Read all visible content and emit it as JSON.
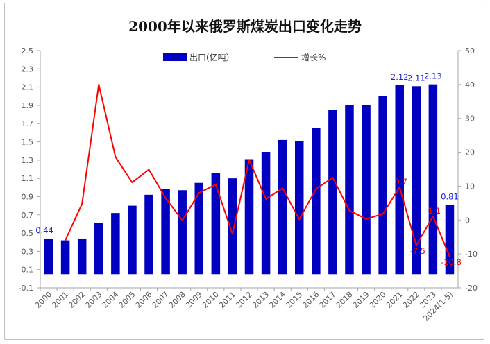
{
  "chart_data": {
    "type": "bar+line",
    "title": "2000年以来俄罗斯煤炭出口变化走势",
    "categories": [
      "2000",
      "2001",
      "2002",
      "2003",
      "2004",
      "2005",
      "2006",
      "2007",
      "2008",
      "2009",
      "2010",
      "2011",
      "2012",
      "2013",
      "2014",
      "2015",
      "2016",
      "2017",
      "2018",
      "2019",
      "2020",
      "2021",
      "2022",
      "2023",
      "2024(1-5)"
    ],
    "series": [
      {
        "name": "出口(亿吨）",
        "type": "bar",
        "axis": "left",
        "color": "#0000c0",
        "values": [
          0.44,
          0.42,
          0.44,
          0.61,
          0.72,
          0.8,
          0.92,
          0.98,
          0.97,
          1.05,
          1.16,
          1.1,
          1.31,
          1.39,
          1.52,
          1.51,
          1.65,
          1.85,
          1.9,
          1.9,
          2.0,
          2.12,
          2.11,
          2.13,
          0.81
        ]
      },
      {
        "name": "增长%",
        "type": "line",
        "axis": "right",
        "color": "#ff0000",
        "values": [
          null,
          -6.0,
          4.8,
          40.0,
          18.6,
          11.1,
          14.9,
          6.5,
          -0.1,
          8.0,
          10.5,
          -4.1,
          17.8,
          6.2,
          9.4,
          0.2,
          9.2,
          12.5,
          2.8,
          0.3,
          1.8,
          9.7,
          -7.5,
          1.1,
          -10.8
        ]
      }
    ],
    "bar_data_labels": [
      {
        "index": 0,
        "text": "0.44"
      },
      {
        "index": 21,
        "text": "2.12"
      },
      {
        "index": 22,
        "text": "2.11"
      },
      {
        "index": 23,
        "text": "2.13"
      },
      {
        "index": 24,
        "text": "0.81"
      }
    ],
    "line_data_labels": [
      {
        "index": 21,
        "text": "9.7"
      },
      {
        "index": 22,
        "text": "-7.5"
      },
      {
        "index": 23,
        "text": "1.1"
      },
      {
        "index": 24,
        "text": "-10.8"
      }
    ],
    "y_left": {
      "min": -0.1,
      "max": 2.5,
      "step": 0.2,
      "ticks": [
        "2.5",
        "2.3",
        "2.1",
        "1.9",
        "1.7",
        "1.5",
        "1.3",
        "1.1",
        "0.9",
        "0.7",
        "0.5",
        "0.3",
        "0.1",
        "-0.1"
      ]
    },
    "y_right": {
      "min": -20,
      "max": 50,
      "step": 10,
      "ticks": [
        "50",
        "40",
        "30",
        "20",
        "10",
        "0",
        "-10",
        "-20"
      ]
    },
    "legend_position": "top-center",
    "grid": false
  }
}
